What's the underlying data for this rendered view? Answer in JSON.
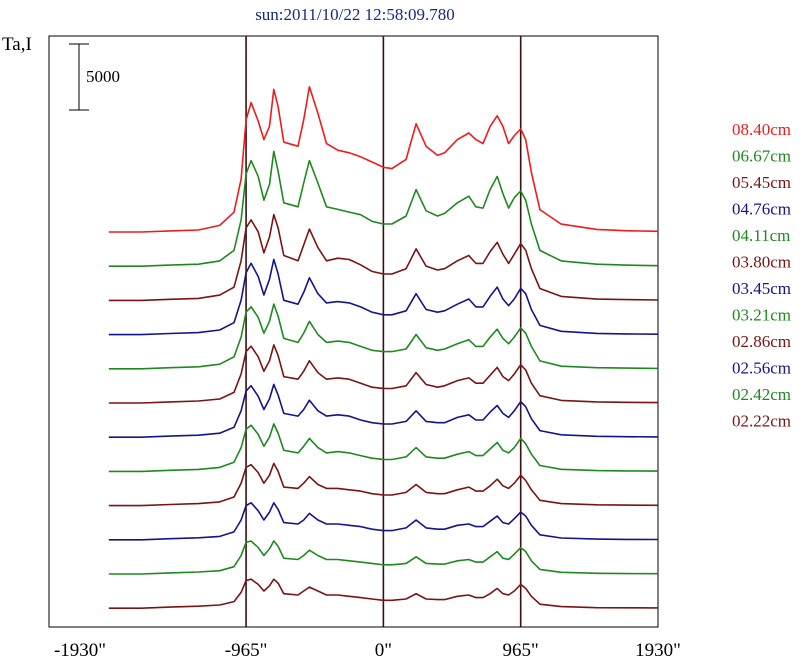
{
  "chart_data": {
    "type": "line",
    "title": "sun:2011/10/22 12:58:09.780",
    "ylabel": "Ta,I",
    "xlabel": "",
    "xlim": [
      -2350,
      1930
    ],
    "x_ticks": [
      {
        "value": -1930,
        "label": "-1930\""
      },
      {
        "value": -965,
        "label": "-965\""
      },
      {
        "value": 0,
        "label": "0\""
      },
      {
        "value": 965,
        "label": "965\""
      },
      {
        "value": 1930,
        "label": "1930\""
      }
    ],
    "vertical_lines": [
      -965,
      0,
      965
    ],
    "scale_bar": {
      "value": 5000,
      "label": "5000"
    },
    "grid": false,
    "legend_position": "right",
    "x": [
      -1930,
      -1700,
      -1500,
      -1300,
      -1150,
      -1050,
      -1000,
      -965,
      -930,
      -880,
      -840,
      -800,
      -770,
      -740,
      -700,
      -600,
      -560,
      -520,
      -460,
      -400,
      -320,
      -240,
      -160,
      -80,
      0,
      60,
      160,
      230,
      300,
      380,
      430,
      520,
      600,
      650,
      700,
      750,
      800,
      840,
      880,
      920,
      965,
      1000,
      1040,
      1100,
      1250,
      1500,
      1700,
      1930
    ],
    "series": [
      {
        "name": "08.40cm",
        "color": "#ee1c1c",
        "values": [
          0,
          0,
          80,
          150,
          500,
          1500,
          4000,
          8500,
          9800,
          8400,
          7000,
          8000,
          10800,
          9500,
          6800,
          6500,
          8500,
          11000,
          9000,
          6700,
          6200,
          6000,
          5700,
          5300,
          4900,
          4800,
          5500,
          8200,
          6500,
          5800,
          6000,
          7000,
          7500,
          7000,
          6700,
          8000,
          8800,
          8000,
          6700,
          7300,
          7800,
          7000,
          4500,
          1700,
          600,
          200,
          100,
          50
        ]
      },
      {
        "name": "06.67cm",
        "color": "#1e8a1e",
        "values": [
          0,
          0,
          80,
          150,
          400,
          1200,
          3500,
          7000,
          8000,
          6800,
          5000,
          6200,
          8700,
          7200,
          4800,
          4500,
          6300,
          8000,
          6300,
          4500,
          4300,
          4100,
          3900,
          3400,
          3200,
          3200,
          3800,
          5800,
          4200,
          3800,
          4000,
          4800,
          5300,
          4500,
          4400,
          5800,
          6800,
          5500,
          4400,
          5200,
          5700,
          5000,
          3200,
          1200,
          400,
          150,
          80,
          40
        ]
      },
      {
        "name": "05.45cm",
        "color": "#7a1414",
        "values": [
          0,
          0,
          80,
          150,
          400,
          1000,
          3000,
          5500,
          6100,
          5200,
          3600,
          4800,
          6500,
          5500,
          3400,
          3000,
          4200,
          5400,
          4000,
          3000,
          3200,
          3100,
          2700,
          2200,
          2000,
          2000,
          2400,
          3900,
          2600,
          2300,
          2400,
          3000,
          3400,
          2800,
          2800,
          3700,
          4400,
          3500,
          2800,
          3500,
          4300,
          3800,
          2400,
          900,
          300,
          100,
          60,
          30
        ]
      },
      {
        "name": "04.76cm",
        "color": "#14148c",
        "values": [
          0,
          0,
          80,
          150,
          350,
          900,
          2600,
          4700,
          5400,
          4400,
          3000,
          4200,
          5700,
          4600,
          2600,
          2300,
          3200,
          4300,
          3100,
          2400,
          2500,
          2400,
          2100,
          1700,
          1500,
          1500,
          1800,
          3100,
          1900,
          1700,
          1800,
          2300,
          2700,
          2100,
          2100,
          2900,
          3600,
          2700,
          2200,
          2700,
          3500,
          3100,
          1900,
          700,
          250,
          90,
          50,
          30
        ]
      },
      {
        "name": "04.11cm",
        "color": "#1e8a1e",
        "values": [
          0,
          0,
          80,
          150,
          350,
          900,
          2400,
          4300,
          4700,
          3900,
          2700,
          3600,
          4900,
          4000,
          2300,
          2000,
          2700,
          3600,
          2600,
          2000,
          2100,
          2000,
          1700,
          1400,
          1300,
          1300,
          1500,
          2600,
          1600,
          1400,
          1500,
          1900,
          2200,
          1700,
          1700,
          2400,
          3000,
          2300,
          1900,
          2400,
          3100,
          2700,
          1700,
          600,
          200,
          80,
          50,
          30
        ]
      },
      {
        "name": "03.80cm",
        "color": "#7a1414",
        "values": [
          0,
          0,
          80,
          150,
          300,
          800,
          2200,
          3900,
          4300,
          3500,
          2400,
          3200,
          4400,
          3600,
          2000,
          1800,
          2400,
          3200,
          2300,
          1800,
          1900,
          1800,
          1500,
          1200,
          1100,
          1100,
          1300,
          2300,
          1400,
          1200,
          1300,
          1700,
          1900,
          1500,
          1500,
          2100,
          2700,
          2000,
          1700,
          2200,
          2900,
          2500,
          1500,
          550,
          200,
          80,
          50,
          30
        ]
      },
      {
        "name": "03.45cm",
        "color": "#14148c",
        "values": [
          0,
          0,
          80,
          150,
          300,
          750,
          2000,
          3500,
          3900,
          3100,
          2100,
          2900,
          4000,
          3200,
          1800,
          1600,
          2100,
          2800,
          2000,
          1600,
          1700,
          1600,
          1300,
          1100,
          1000,
          1000,
          1200,
          2000,
          1200,
          1100,
          1100,
          1500,
          1700,
          1300,
          1300,
          1900,
          2400,
          1800,
          1500,
          2000,
          2700,
          2300,
          1400,
          500,
          180,
          70,
          40,
          20
        ]
      },
      {
        "name": "03.21cm",
        "color": "#1e8a1e",
        "values": [
          0,
          0,
          80,
          150,
          300,
          700,
          1800,
          3200,
          3500,
          2800,
          1900,
          2600,
          3600,
          2900,
          1600,
          1400,
          1900,
          2500,
          1800,
          1400,
          1500,
          1400,
          1200,
          1000,
          900,
          900,
          1100,
          1800,
          1100,
          1000,
          1000,
          1300,
          1500,
          1200,
          1200,
          1700,
          2200,
          1600,
          1400,
          1800,
          2500,
          2100,
          1300,
          450,
          160,
          60,
          40,
          20
        ]
      },
      {
        "name": "02.86cm",
        "color": "#7a1414",
        "values": [
          0,
          0,
          80,
          150,
          280,
          650,
          1700,
          2900,
          3100,
          2500,
          1700,
          2300,
          3200,
          2600,
          1400,
          1300,
          1700,
          2200,
          1600,
          1300,
          1300,
          1200,
          1100,
          900,
          800,
          800,
          1000,
          1600,
          1000,
          900,
          900,
          1200,
          1400,
          1100,
          1100,
          1500,
          2000,
          1500,
          1300,
          1700,
          2300,
          1900,
          1200,
          400,
          150,
          60,
          40,
          20
        ]
      },
      {
        "name": "02.56cm",
        "color": "#14148c",
        "values": [
          0,
          0,
          80,
          150,
          260,
          600,
          1500,
          2600,
          2800,
          2200,
          1500,
          2100,
          2800,
          2300,
          1300,
          1200,
          1500,
          2000,
          1500,
          1200,
          1200,
          1100,
          1000,
          800,
          700,
          700,
          900,
          1500,
          900,
          800,
          800,
          1100,
          1200,
          1000,
          1000,
          1400,
          1800,
          1300,
          1200,
          1600,
          2100,
          1800,
          1100,
          380,
          140,
          50,
          30,
          20
        ]
      },
      {
        "name": "02.42cm",
        "color": "#1e8a1e",
        "values": [
          0,
          0,
          80,
          150,
          250,
          550,
          1400,
          2400,
          2500,
          2000,
          1400,
          1900,
          2500,
          2100,
          1200,
          1100,
          1400,
          1800,
          1400,
          1100,
          1100,
          1000,
          900,
          800,
          700,
          700,
          800,
          1300,
          800,
          750,
          750,
          1000,
          1100,
          900,
          900,
          1300,
          1700,
          1200,
          1100,
          1500,
          2000,
          1700,
          1000,
          350,
          130,
          50,
          30,
          20
        ]
      },
      {
        "name": "02.22cm",
        "color": "#7a1414",
        "values": [
          0,
          0,
          80,
          150,
          240,
          500,
          1200,
          2100,
          2200,
          1800,
          1300,
          1700,
          2200,
          1900,
          1100,
          1000,
          1300,
          1600,
          1300,
          1000,
          1000,
          900,
          800,
          700,
          600,
          600,
          700,
          1100,
          700,
          650,
          650,
          900,
          1000,
          800,
          800,
          1100,
          1500,
          1100,
          1000,
          1300,
          1800,
          1500,
          900,
          300,
          120,
          40,
          30,
          20
        ]
      }
    ]
  }
}
